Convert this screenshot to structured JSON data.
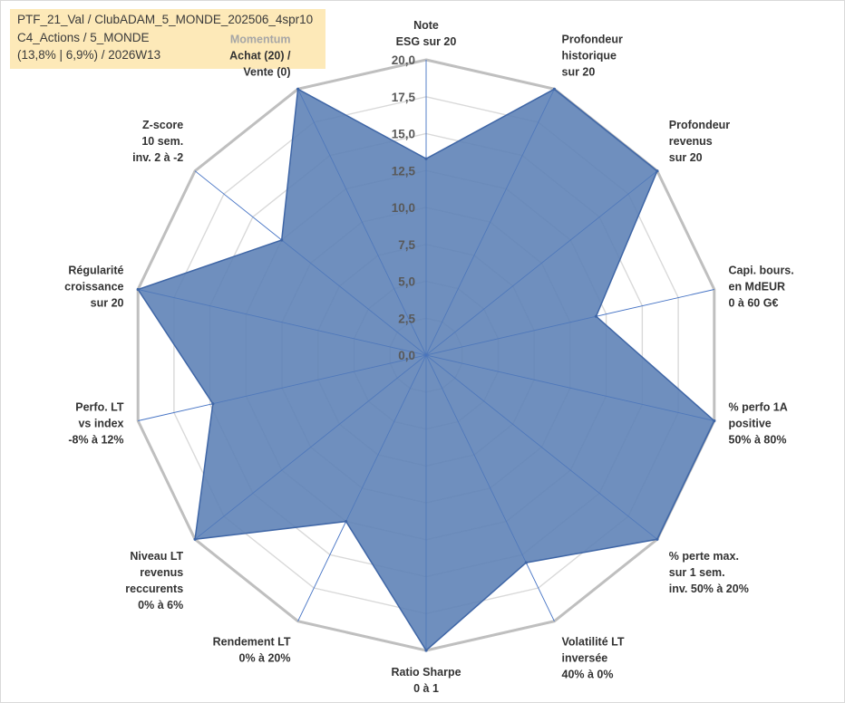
{
  "header": {
    "line1": "PTF_21_Val / ClubADAM_5_MONDE_202506_4spr10",
    "line2": "C4_Actions / 5_MONDE",
    "line3": "(13,8% | 6,9%) / 2026W13"
  },
  "colors": {
    "fill": "#5b7fb5",
    "stroke": "#3f66a6",
    "outer_ring": "#bfbfbf",
    "inner_ring": "#d9d9d9",
    "spoke": "#4472c4",
    "info_bg": "#fde9b8"
  },
  "chart_data": {
    "type": "radar",
    "title": "",
    "rlim": [
      0,
      20
    ],
    "rticks": [
      "0,0",
      "2,5",
      "5,0",
      "7,5",
      "10,0",
      "12,5",
      "15,0",
      "17,5",
      "20,0"
    ],
    "axes": [
      {
        "label": [
          "Note",
          "ESG sur 20"
        ],
        "value": 13.3
      },
      {
        "label": [
          "Profondeur",
          "historique",
          "sur 20"
        ],
        "value": 20
      },
      {
        "label": [
          "Profondeur",
          "revenus",
          "sur 20"
        ],
        "value": 20
      },
      {
        "label": [
          "Capi. bours.",
          "en MdEUR",
          "0 à 60 G€"
        ],
        "value": 11.8
      },
      {
        "label": [
          "% perfo 1A",
          "positive",
          "50% à 80%"
        ],
        "value": 20
      },
      {
        "label": [
          "% perte max.",
          "sur 1 sem.",
          "inv. 50% à 20%"
        ],
        "value": 20
      },
      {
        "label": [
          "Volatilité LT",
          "inversée",
          "40% à 0%"
        ],
        "value": 15.6
      },
      {
        "label": [
          "Ratio Sharpe",
          "0 à 1"
        ],
        "value": 20
      },
      {
        "label": [
          "Rendement LT",
          "0% à 20%"
        ],
        "value": 12.5
      },
      {
        "label": [
          "Niveau LT",
          "revenus",
          "reccurents",
          "0% à 6%"
        ],
        "value": 20
      },
      {
        "label": [
          "Perfo. LT",
          "vs index",
          "-8% à 12%"
        ],
        "value": 14.8
      },
      {
        "label": [
          "Régularité",
          "croissance",
          "sur 20"
        ],
        "value": 20
      },
      {
        "label": [
          "Z-score",
          "10 sem.",
          "inv. 2 à -2"
        ],
        "value": 12.5
      },
      {
        "label": [
          "Momentum",
          "Achat (20) /",
          "Vente (0)"
        ],
        "value": 20
      }
    ]
  }
}
